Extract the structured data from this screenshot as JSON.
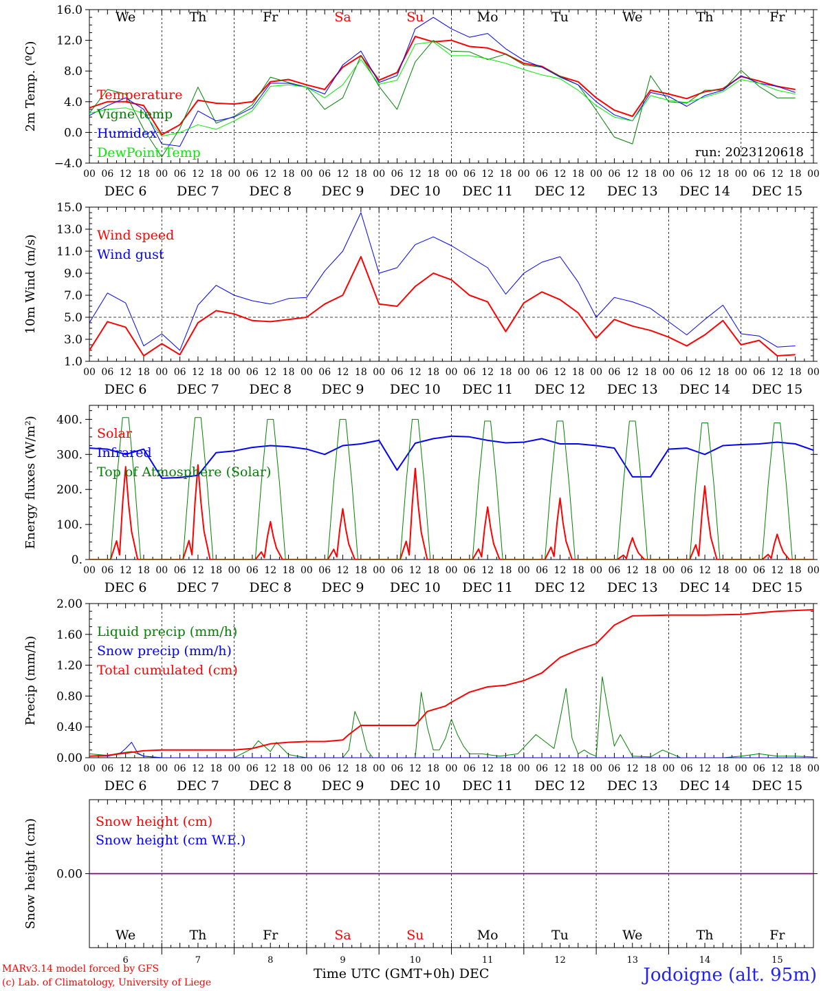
{
  "colors": {
    "temperature": "#ff0000",
    "vigne_temp": "#008000",
    "humidex": "#0000ff",
    "dewpoint": "#00ee00",
    "wind_speed": "#ff0000",
    "wind_gust": "#0000ff",
    "solar": "#ff0000",
    "infrared": "#0000ff",
    "toa_solar": "#008000",
    "liquid": "#008000",
    "snow_precip": "#0000ff",
    "cumulated": "#ff0000",
    "snow_height": "#ff0000",
    "snow_height_we": "#0000ff",
    "snow_line": "#800080",
    "weekend": "#ff0000",
    "weekday": "#000000"
  },
  "days": [
    {
      "abbr": "We",
      "date": "DEC  6",
      "num": "6",
      "weekend": false
    },
    {
      "abbr": "Th",
      "date": "DEC  7",
      "num": "7",
      "weekend": false
    },
    {
      "abbr": "Fr",
      "date": "DEC  8",
      "num": "8",
      "weekend": false
    },
    {
      "abbr": "Sa",
      "date": "DEC  9",
      "num": "9",
      "weekend": true
    },
    {
      "abbr": "Su",
      "date": "DEC 10",
      "num": "10",
      "weekend": true
    },
    {
      "abbr": "Mo",
      "date": "DEC 11",
      "num": "11",
      "weekend": false
    },
    {
      "abbr": "Tu",
      "date": "DEC 12",
      "num": "12",
      "weekend": false
    },
    {
      "abbr": "We",
      "date": "DEC 13",
      "num": "13",
      "weekend": false
    },
    {
      "abbr": "Th",
      "date": "DEC 14",
      "num": "14",
      "weekend": false
    },
    {
      "abbr": "Fr",
      "date": "DEC 15",
      "num": "15",
      "weekend": false
    }
  ],
  "hour_ticks": [
    "00",
    "06",
    "12",
    "18"
  ],
  "hour_tick_end": "00",
  "chart_data": [
    {
      "type": "line",
      "id": "temp",
      "ylabel": "2m Temp. (ºC)",
      "ylim": [
        -4.0,
        16.0
      ],
      "yticks": [
        "16.0",
        "12.0",
        "8.0",
        "4.0",
        "0.0",
        "−4.0"
      ],
      "ytick_values": [
        16,
        12,
        8,
        4,
        0,
        -4
      ],
      "reference_line": 0,
      "x_unit": "hours after DEC 6 00 UTC",
      "annotation": "run: 2023120618",
      "series": [
        {
          "name": "Temperature",
          "color": "temperature",
          "width": 2,
          "x": [
            0,
            6,
            12,
            18,
            24,
            30,
            36,
            42,
            48,
            54,
            60,
            66,
            72,
            78,
            84,
            90,
            96,
            102,
            108,
            114,
            120,
            126,
            132,
            138,
            144,
            150,
            156,
            162,
            168,
            174,
            180,
            186,
            192,
            198,
            204,
            210,
            216,
            222,
            228,
            234
          ],
          "y": [
            3.2,
            4.0,
            4.0,
            3.5,
            -0.3,
            1.0,
            4.2,
            3.8,
            3.7,
            4.0,
            6.6,
            6.9,
            6.2,
            5.6,
            8.5,
            10.0,
            6.8,
            7.8,
            12.5,
            11.8,
            12.0,
            11.2,
            11.0,
            10.2,
            9.0,
            8.6,
            7.3,
            6.6,
            4.5,
            2.9,
            2.1,
            5.5,
            5.0,
            4.4,
            5.3,
            5.7,
            7.3,
            6.7,
            6.0,
            5.6
          ]
        },
        {
          "name": "Vigne temp",
          "color": "vigne_temp",
          "width": 1,
          "x": [
            0,
            6,
            12,
            18,
            24,
            30,
            36,
            42,
            48,
            54,
            60,
            66,
            72,
            78,
            84,
            90,
            96,
            102,
            108,
            114,
            120,
            126,
            132,
            138,
            144,
            150,
            156,
            162,
            168,
            174,
            180,
            186,
            192,
            198,
            204,
            210,
            216,
            222,
            228,
            234
          ],
          "y": [
            2.5,
            5.6,
            5.0,
            0.4,
            -3.2,
            0.5,
            5.9,
            1.2,
            2.1,
            3.6,
            7.2,
            6.5,
            5.9,
            3.0,
            4.5,
            10.0,
            6.0,
            3.0,
            9.2,
            12.0,
            10.6,
            10.5,
            9.5,
            10.2,
            8.8,
            8.5,
            7.3,
            6.2,
            2.9,
            -0.6,
            -1.5,
            7.4,
            4.0,
            3.8,
            5.5,
            5.5,
            8.1,
            6.0,
            4.5,
            4.5
          ]
        },
        {
          "name": "Humidex",
          "color": "humidex",
          "width": 1,
          "x": [
            0,
            6,
            12,
            18,
            24,
            30,
            36,
            42,
            48,
            54,
            60,
            66,
            72,
            78,
            84,
            90,
            96,
            102,
            108,
            114,
            120,
            126,
            132,
            138,
            144,
            150,
            156,
            162,
            168,
            174,
            180,
            186,
            192,
            198,
            204,
            210,
            216,
            222,
            228,
            234
          ],
          "y": [
            2.2,
            3.5,
            4.5,
            3.0,
            -1.5,
            -1.8,
            2.8,
            1.5,
            2.0,
            3.2,
            6.4,
            6.4,
            5.9,
            5.0,
            8.8,
            10.6,
            6.5,
            7.4,
            13.5,
            15.0,
            13.5,
            12.4,
            12.9,
            10.9,
            9.4,
            8.5,
            7.2,
            6.2,
            4.0,
            2.3,
            1.5,
            5.2,
            4.7,
            3.4,
            4.8,
            5.5,
            7.4,
            6.4,
            6.0,
            5.2
          ]
        },
        {
          "name": "DewPoint Temp",
          "color": "dewpoint",
          "width": 1,
          "x": [
            0,
            6,
            12,
            18,
            24,
            30,
            36,
            42,
            48,
            54,
            60,
            66,
            72,
            78,
            84,
            90,
            96,
            102,
            108,
            114,
            120,
            126,
            132,
            138,
            144,
            150,
            156,
            162,
            168,
            174,
            180,
            186,
            192,
            198,
            204,
            210,
            216,
            222,
            228,
            234
          ],
          "y": [
            2.5,
            3.0,
            3.2,
            2.5,
            -0.5,
            0.0,
            1.0,
            0.4,
            1.5,
            2.8,
            6.0,
            6.2,
            5.9,
            4.5,
            6.2,
            9.5,
            6.3,
            6.8,
            11.5,
            11.8,
            10.0,
            10.0,
            9.6,
            9.0,
            8.2,
            7.5,
            7.0,
            5.5,
            3.5,
            2.0,
            1.5,
            4.8,
            4.2,
            3.9,
            4.6,
            5.3,
            6.9,
            6.4,
            5.5,
            5.0
          ]
        }
      ]
    },
    {
      "type": "line",
      "id": "wind",
      "ylabel": "10m Wind (m/s)",
      "ylim": [
        1.0,
        15.0
      ],
      "yticks": [
        "15.0",
        "13.0",
        "11.0",
        "9.0",
        "7.0",
        "5.0",
        "3.0",
        "1.0"
      ],
      "ytick_values": [
        15,
        13,
        11,
        9,
        7,
        5,
        3,
        1
      ],
      "reference_line": 5,
      "x_unit": "hours after DEC 6 00 UTC",
      "series": [
        {
          "name": "Wind speed",
          "color": "wind_speed",
          "width": 2,
          "x": [
            0,
            6,
            12,
            18,
            24,
            30,
            36,
            42,
            48,
            54,
            60,
            66,
            72,
            78,
            84,
            90,
            96,
            102,
            108,
            114,
            120,
            126,
            132,
            138,
            144,
            150,
            156,
            162,
            168,
            174,
            180,
            186,
            192,
            198,
            204,
            210,
            216,
            222,
            228,
            234
          ],
          "y": [
            2.0,
            4.6,
            4.1,
            1.5,
            2.6,
            1.6,
            4.5,
            5.6,
            5.3,
            4.7,
            4.6,
            4.8,
            5.0,
            6.2,
            7.0,
            10.5,
            6.2,
            6.0,
            7.8,
            9.0,
            8.4,
            7.0,
            6.4,
            3.7,
            6.3,
            7.3,
            6.6,
            5.4,
            3.1,
            4.8,
            4.2,
            3.8,
            3.2,
            2.4,
            3.4,
            4.7,
            2.5,
            2.9,
            1.5,
            1.6
          ]
        },
        {
          "name": "Wind gust",
          "color": "wind_gust",
          "width": 1,
          "x": [
            0,
            6,
            12,
            18,
            24,
            30,
            36,
            42,
            48,
            54,
            60,
            66,
            72,
            78,
            84,
            90,
            96,
            102,
            108,
            114,
            120,
            126,
            132,
            138,
            144,
            150,
            156,
            162,
            168,
            174,
            180,
            186,
            192,
            198,
            204,
            210,
            216,
            222,
            228,
            234
          ],
          "y": [
            4.5,
            7.2,
            6.3,
            2.4,
            3.5,
            2.0,
            6.1,
            7.9,
            7.0,
            6.5,
            6.2,
            6.7,
            6.8,
            9.2,
            11.0,
            14.5,
            9.0,
            9.5,
            11.6,
            12.3,
            11.5,
            10.5,
            9.5,
            7.1,
            9.0,
            10.0,
            10.5,
            8.2,
            5.0,
            6.8,
            6.4,
            5.8,
            4.6,
            3.4,
            4.8,
            6.1,
            3.5,
            3.3,
            2.3,
            2.4
          ]
        }
      ]
    },
    {
      "type": "line",
      "id": "energy",
      "ylabel": "Energy fluxes (W/m²)",
      "ylim": [
        0,
        440
      ],
      "yticks": [
        "400.",
        "300.",
        "200.",
        "100.",
        "0."
      ],
      "ytick_values": [
        400,
        300,
        200,
        100,
        0
      ],
      "x_unit": "hours after DEC 6 00 UTC",
      "series": [
        {
          "name": "Solar",
          "color": "solar",
          "width": 2,
          "daily_peak_hour": 12,
          "daily_peak": [
            265,
            270,
            108,
            145,
            260,
            150,
            175,
            62,
            210,
            72
          ]
        },
        {
          "name": "Infrared",
          "color": "infrared",
          "width": 2,
          "x": [
            0,
            6,
            12,
            18,
            24,
            30,
            36,
            42,
            48,
            54,
            60,
            66,
            72,
            78,
            84,
            90,
            96,
            102,
            108,
            114,
            120,
            126,
            132,
            138,
            144,
            150,
            156,
            162,
            168,
            174,
            180,
            186,
            192,
            198,
            204,
            210,
            216,
            222,
            228,
            234,
            240
          ],
          "y": [
            318,
            315,
            300,
            315,
            232,
            234,
            240,
            305,
            310,
            320,
            325,
            322,
            315,
            300,
            325,
            330,
            340,
            255,
            332,
            345,
            352,
            350,
            340,
            333,
            335,
            345,
            330,
            330,
            325,
            318,
            236,
            236,
            315,
            318,
            300,
            325,
            328,
            330,
            335,
            330,
            312
          ]
        },
        {
          "name": "Top of Atmosphere (Solar)",
          "color": "toa_solar",
          "width": 1,
          "daily_peak_hour": 12,
          "daily_peak": [
            405,
            405,
            400,
            400,
            400,
            395,
            395,
            395,
            390,
            390
          ]
        }
      ]
    },
    {
      "type": "line",
      "id": "precip",
      "ylabel": "Precip (mm/h)",
      "ylim": [
        0.0,
        2.0
      ],
      "yticks": [
        "2.00",
        "1.60",
        "1.20",
        "0.80",
        "0.40",
        "0.00"
      ],
      "ytick_values": [
        2.0,
        1.6,
        1.2,
        0.8,
        0.4,
        0.0
      ],
      "x_unit": "hours after DEC 6 00 UTC",
      "series": [
        {
          "name": "Liquid precip (mm/h)",
          "color": "liquid",
          "width": 1,
          "x": [
            0,
            6,
            10,
            14,
            18,
            24,
            42,
            48,
            54,
            56,
            60,
            62,
            66,
            72,
            84,
            86,
            88,
            90,
            92,
            94,
            108,
            110,
            112,
            114,
            116,
            118,
            120,
            122,
            124,
            126,
            130,
            136,
            142,
            148,
            154,
            156,
            158,
            160,
            162,
            164,
            166,
            168,
            170,
            172,
            174,
            176,
            180,
            186,
            190,
            196,
            204,
            210,
            216,
            222,
            228,
            234,
            240
          ],
          "y": [
            0.05,
            0.03,
            0.06,
            0.08,
            0.02,
            0.0,
            0.0,
            0.0,
            0.12,
            0.22,
            0.08,
            0.2,
            0.04,
            0.0,
            0.0,
            0.1,
            0.6,
            0.42,
            0.1,
            0.0,
            0.0,
            0.85,
            0.4,
            0.1,
            0.1,
            0.25,
            0.5,
            0.3,
            0.15,
            0.05,
            0.05,
            0.02,
            0.05,
            0.3,
            0.12,
            0.5,
            0.9,
            0.25,
            0.05,
            0.1,
            0.05,
            0.02,
            1.05,
            0.6,
            0.15,
            0.3,
            0.02,
            0.01,
            0.1,
            0.0,
            0.0,
            0.0,
            0.02,
            0.05,
            0.02,
            0.02,
            0.01
          ]
        },
        {
          "name": "Snow precip (mm/h)",
          "color": "snow_precip",
          "width": 1,
          "x": [
            0,
            6,
            10,
            12,
            14,
            16,
            18,
            24,
            240
          ],
          "y": [
            0.02,
            0.02,
            0.05,
            0.12,
            0.2,
            0.06,
            0.02,
            0.0,
            0.0
          ]
        },
        {
          "name": "Total cumulated (cm)",
          "color": "cumulated",
          "width": 2,
          "x": [
            0,
            6,
            12,
            18,
            24,
            36,
            48,
            54,
            60,
            66,
            72,
            78,
            84,
            86,
            90,
            96,
            102,
            108,
            112,
            118,
            120,
            126,
            132,
            138,
            144,
            150,
            156,
            162,
            168,
            170,
            174,
            180,
            192,
            204,
            216,
            228,
            240
          ],
          "y": [
            0.02,
            0.03,
            0.06,
            0.09,
            0.1,
            0.1,
            0.1,
            0.12,
            0.18,
            0.2,
            0.21,
            0.21,
            0.23,
            0.3,
            0.42,
            0.42,
            0.42,
            0.42,
            0.6,
            0.67,
            0.72,
            0.85,
            0.92,
            0.94,
            1.0,
            1.1,
            1.3,
            1.4,
            1.48,
            1.56,
            1.72,
            1.84,
            1.85,
            1.85,
            1.86,
            1.9,
            1.92
          ]
        }
      ]
    },
    {
      "type": "line",
      "id": "snow",
      "ylabel": "Snow height (cm)",
      "ylim": [
        -1.0,
        1.0
      ],
      "yticks": [
        "0.00"
      ],
      "ytick_values": [
        0.0
      ],
      "x_unit": "hours after DEC 6 00 UTC",
      "series": [
        {
          "name": "Snow height (cm)",
          "color": "snow_height",
          "x": [
            0,
            240
          ],
          "y": [
            0,
            0
          ]
        },
        {
          "name": "Snow height (cm W.E.)",
          "color": "snow_height_we",
          "x": [
            0,
            240
          ],
          "y": [
            0,
            0
          ]
        }
      ]
    }
  ],
  "footer": {
    "credit_line1": "MARv3.14 model forced by GFS",
    "credit_line2": "(c) Lab. of Climatology, University of Liege",
    "xlabel": "Time UTC (GMT+0h) DEC",
    "station": "Jodoigne (alt. 95m)"
  }
}
